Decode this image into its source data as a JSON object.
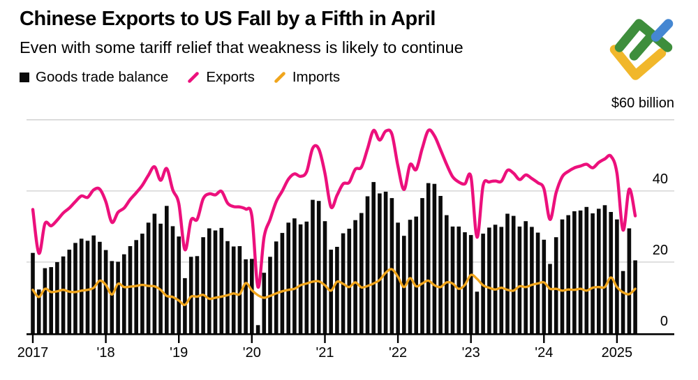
{
  "header": {
    "title": "Chinese Exports to US Fall by a Fifth in April",
    "subtitle": "Even with some tariff relief that weakness is likely to continue"
  },
  "legend": {
    "items": [
      {
        "label": "Goods trade balance",
        "marker": "square",
        "color": "#0b0b0b"
      },
      {
        "label": "Exports",
        "marker": "slash",
        "color": "#ec107c"
      },
      {
        "label": "Imports",
        "marker": "slash",
        "color": "#f0a51c"
      }
    ]
  },
  "logo": {
    "colors": {
      "green": "#3e8e3c",
      "blue": "#4587d2",
      "yellow": "#f1b72b"
    }
  },
  "chart_data": {
    "type": "combo bar+line",
    "unit": "USD billion, monthly",
    "start_month": "2017-01",
    "end_month": "2025-04",
    "top_axis_label": "$60 billion",
    "ylim": [
      0,
      62
    ],
    "grid": "horizontal",
    "y_gridlines": [
      60,
      40,
      20
    ],
    "y_ticks": [
      {
        "value": 40,
        "label": "40"
      },
      {
        "value": 20,
        "label": "20"
      },
      {
        "value": 0,
        "label": "0"
      }
    ],
    "x_ticks": [
      {
        "label": "2017",
        "month": 0
      },
      {
        "label": "'18",
        "month": 12
      },
      {
        "label": "'19",
        "month": 24
      },
      {
        "label": "'20",
        "month": 36
      },
      {
        "label": "'21",
        "month": 48
      },
      {
        "label": "'22",
        "month": 60
      },
      {
        "label": "'23",
        "month": 72
      },
      {
        "label": "'24",
        "month": 84
      },
      {
        "label": "2025",
        "month": 96
      }
    ],
    "series": [
      {
        "name": "Goods trade balance",
        "type": "bar",
        "color": "#0b0b0b",
        "values": [
          22.6,
          12.3,
          18.3,
          18.6,
          20.0,
          21.6,
          23.5,
          25.4,
          26.6,
          26.0,
          27.5,
          25.7,
          23.4,
          20.3,
          20.1,
          22.2,
          24.5,
          26.2,
          28.0,
          31.1,
          33.6,
          30.8,
          35.8,
          30.1,
          27.2,
          15.5,
          21.5,
          21.7,
          27.0,
          29.5,
          28.9,
          29.6,
          25.9,
          24.4,
          24.5,
          20.8,
          20.9,
          2.3,
          17.0,
          21.5,
          25.8,
          28.2,
          31.1,
          32.3,
          30.6,
          31.4,
          37.5,
          37.2,
          31.5,
          23.5,
          24.3,
          28.1,
          29.4,
          31.8,
          33.8,
          38.5,
          42.5,
          39.3,
          39.8,
          38.0,
          31.1,
          27.4,
          31.9,
          32.8,
          38.0,
          42.2,
          42.0,
          38.6,
          33.2,
          30.0,
          30.0,
          28.4,
          27.6,
          11.7,
          28.0,
          29.7,
          30.5,
          29.9,
          33.6,
          33.0,
          30.0,
          31.5,
          29.9,
          28.3,
          26.3,
          19.5,
          27.0,
          32.0,
          33.2,
          34.3,
          34.5,
          35.5,
          33.7,
          35.0,
          36.0,
          34.1,
          32.0,
          17.5,
          29.5,
          20.5
        ]
      },
      {
        "name": "Exports",
        "type": "line",
        "color": "#ec107c",
        "values": [
          34.8,
          22.5,
          30.8,
          30.2,
          31.8,
          33.8,
          35.2,
          37.0,
          38.6,
          38.2,
          40.3,
          40.5,
          37.0,
          31.2,
          34.0,
          35.2,
          37.6,
          39.5,
          41.6,
          44.4,
          46.8,
          43.0,
          46.3,
          40.3,
          36.4,
          23.5,
          31.8,
          32.0,
          37.8,
          39.2,
          38.9,
          39.9,
          36.6,
          35.6,
          35.5,
          34.9,
          33.0,
          13.0,
          27.0,
          32.0,
          37.0,
          40.0,
          43.3,
          44.8,
          44.1,
          45.4,
          52.0,
          51.8,
          45.0,
          35.5,
          38.8,
          42.0,
          42.4,
          46.1,
          46.7,
          51.8,
          57.0,
          54.3,
          56.8,
          56.0,
          47.0,
          40.4,
          47.4,
          46.0,
          52.0,
          57.0,
          55.5,
          51.6,
          47.5,
          44.0,
          42.5,
          42.0,
          44.0,
          27.0,
          41.5,
          42.5,
          42.8,
          42.7,
          45.8,
          45.0,
          43.2,
          44.5,
          43.5,
          42.3,
          40.6,
          32.0,
          39.5,
          44.0,
          45.5,
          46.5,
          47.0,
          47.5,
          46.5,
          48.0,
          49.0,
          49.8,
          45.0,
          29.0,
          40.5,
          33.0
        ]
      },
      {
        "name": "Imports",
        "type": "line",
        "color": "#f0a51c",
        "values": [
          12.2,
          10.2,
          12.5,
          11.6,
          11.8,
          12.2,
          11.7,
          11.6,
          12.0,
          12.2,
          12.8,
          14.8,
          13.6,
          10.9,
          13.9,
          13.0,
          13.1,
          13.3,
          13.6,
          13.3,
          13.2,
          12.2,
          10.5,
          10.2,
          9.2,
          8.0,
          10.3,
          10.3,
          10.8,
          9.7,
          10.0,
          10.3,
          10.7,
          11.2,
          11.0,
          14.1,
          12.1,
          10.7,
          10.0,
          10.5,
          11.2,
          11.8,
          12.2,
          12.5,
          13.5,
          14.0,
          14.5,
          14.6,
          13.5,
          12.0,
          14.5,
          13.9,
          13.0,
          14.3,
          12.9,
          13.3,
          14.0,
          15.0,
          17.0,
          18.0,
          15.9,
          13.0,
          15.5,
          13.2,
          14.0,
          14.8,
          13.5,
          13.0,
          14.3,
          14.0,
          12.5,
          13.6,
          16.4,
          15.3,
          13.5,
          12.8,
          12.3,
          12.8,
          12.2,
          12.0,
          13.2,
          13.0,
          13.6,
          14.0,
          14.3,
          12.5,
          12.5,
          12.0,
          12.3,
          12.2,
          12.5,
          12.0,
          12.8,
          13.0,
          13.0,
          15.7,
          13.0,
          11.5,
          11.0,
          12.5
        ]
      }
    ]
  }
}
